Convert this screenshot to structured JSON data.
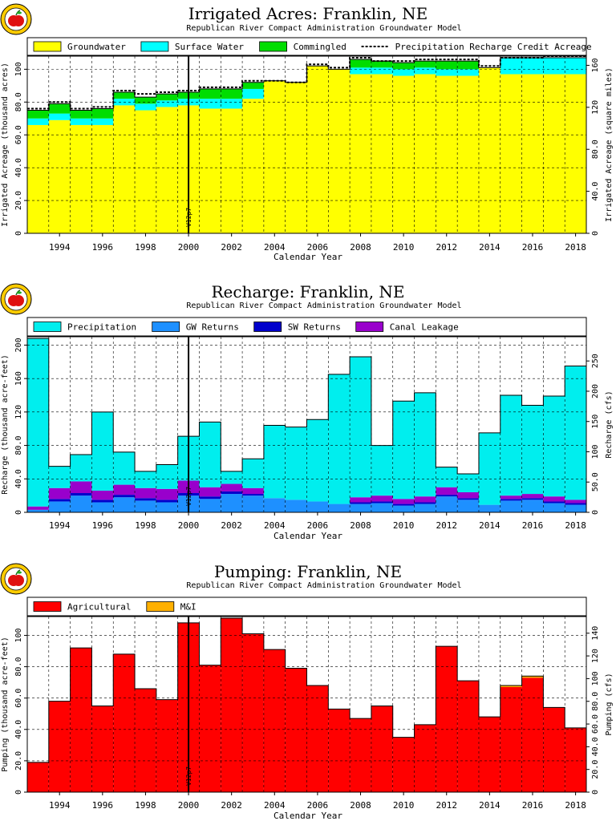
{
  "colors": {
    "groundwater": "#ffff00",
    "surface_water": "#00ffff",
    "commingled": "#00dd00",
    "precip_credit_line": "#000000",
    "precipitation": "#00eeee",
    "gw_returns": "#1e90ff",
    "sw_returns": "#0000cc",
    "canal_leakage": "#9900cc",
    "agricultural": "#ff0000",
    "mi": "#ffb000",
    "event_line": "#000000",
    "grid": "#000000",
    "logo_red": "#e01010"
  },
  "event_marker": {
    "label": "V12p7",
    "year": 2000.5
  },
  "chart_data": [
    {
      "id": "irrigated",
      "type": "area",
      "step": true,
      "title": "Irrigated Acres: Franklin, NE",
      "subtitle": "Republican River Compact Administration Groundwater Model",
      "xlabel": "Calendar Year",
      "ylabel": "Irrigated Acreage (thousand acres)",
      "ylabel_right": "Irrigated Acreage (square miles)",
      "xlim": [
        1993,
        2019
      ],
      "ylim": [
        0,
        108
      ],
      "x_ticks": [
        1994,
        1996,
        1998,
        2000,
        2002,
        2004,
        2006,
        2008,
        2010,
        2012,
        2014,
        2016,
        2018
      ],
      "y_ticks": [
        0,
        20,
        40,
        60,
        80,
        100
      ],
      "y_tick_labels": [
        "0",
        "20.0",
        "40.0",
        "60.0",
        "80.0",
        "100"
      ],
      "y_right_ticks": [
        0,
        40,
        80,
        120,
        160
      ],
      "y_right_tick_labels": [
        "0",
        "40.0",
        "80.0",
        "120",
        "160"
      ],
      "y_right_scale": 1.5625,
      "grid": true,
      "legend_position": "top",
      "years": [
        1993,
        1994,
        1995,
        1996,
        1997,
        1998,
        1999,
        2000,
        2001,
        2002,
        2003,
        2004,
        2005,
        2006,
        2007,
        2008,
        2009,
        2010,
        2011,
        2012,
        2013,
        2014,
        2015,
        2016,
        2017,
        2018
      ],
      "series": [
        {
          "name": "Groundwater",
          "color_key": "groundwater",
          "values": [
            66,
            69,
            66,
            66,
            78,
            75,
            77,
            78,
            76,
            76,
            82,
            93,
            92,
            102,
            100,
            97,
            97,
            96,
            97,
            96,
            96,
            101,
            97,
            97,
            97,
            97
          ]
        },
        {
          "name": "Surface Water",
          "color_key": "surface_water",
          "values": [
            4,
            4,
            4,
            4,
            4,
            4,
            4,
            4,
            6,
            6,
            6,
            0,
            0,
            0,
            0,
            4,
            4,
            4,
            4,
            4,
            4,
            0,
            10,
            10,
            10,
            10
          ]
        },
        {
          "name": "Commingled",
          "color_key": "commingled",
          "values": [
            5,
            6,
            5,
            6,
            4,
            4,
            4,
            4,
            6,
            6,
            4,
            0,
            0,
            0,
            0,
            5,
            4,
            4,
            4,
            5,
            5,
            0,
            0,
            0,
            0,
            0
          ]
        }
      ],
      "line_series": {
        "name": "Precipitation Recharge Credit Acreage",
        "color_key": "precip_credit_line",
        "dashed": true,
        "values": [
          76,
          80,
          76,
          77,
          87,
          85,
          86,
          87,
          89,
          89,
          93,
          93,
          92,
          103,
          101,
          107,
          105,
          105,
          106,
          106,
          106,
          102,
          107,
          107,
          108,
          108
        ]
      }
    },
    {
      "id": "recharge",
      "type": "area",
      "step": true,
      "title": "Recharge: Franklin, NE",
      "subtitle": "Republican River Compact Administration Groundwater Model",
      "xlabel": "Calendar Year",
      "ylabel": "Recharge (thousand acre-feet)",
      "ylabel_right": "Recharge (cfs)",
      "xlim": [
        1993,
        2019
      ],
      "ylim": [
        0,
        210
      ],
      "x_ticks": [
        1994,
        1996,
        1998,
        2000,
        2002,
        2004,
        2006,
        2008,
        2010,
        2012,
        2014,
        2016,
        2018
      ],
      "y_ticks": [
        0,
        40,
        80,
        120,
        160,
        200
      ],
      "y_tick_labels": [
        "0",
        "40.0",
        "80.0",
        "120",
        "160",
        "200"
      ],
      "y_right_ticks": [
        0,
        50,
        100,
        150,
        200,
        250
      ],
      "y_right_tick_labels": [
        "0",
        "50.0",
        "100",
        "150",
        "200",
        "250"
      ],
      "y_right_scale": 1.381,
      "grid": true,
      "legend_position": "top",
      "years": [
        1993,
        1994,
        1995,
        1996,
        1997,
        1998,
        1999,
        2000,
        2001,
        2002,
        2003,
        2004,
        2005,
        2006,
        2007,
        2008,
        2009,
        2010,
        2011,
        2012,
        2013,
        2014,
        2015,
        2016,
        2017,
        2018
      ],
      "series": [
        {
          "name": "GW Returns",
          "color_key": "gw_returns",
          "values": [
            3,
            13,
            20,
            12,
            18,
            14,
            12,
            20,
            16,
            22,
            20,
            17,
            15,
            13,
            10,
            10,
            11,
            8,
            10,
            19,
            15,
            9,
            14,
            15,
            11,
            9
          ]
        },
        {
          "name": "SW Returns",
          "color_key": "sw_returns",
          "values": [
            0,
            3,
            3,
            3,
            3,
            3,
            3,
            3,
            3,
            3,
            2,
            0,
            0,
            0,
            0,
            2,
            2,
            2,
            2,
            2,
            2,
            0,
            2,
            2,
            2,
            2
          ]
        },
        {
          "name": "Canal Leakage",
          "color_key": "canal_leakage",
          "values": [
            4,
            13,
            14,
            11,
            12,
            12,
            13,
            15,
            11,
            9,
            7,
            0,
            0,
            0,
            0,
            6,
            7,
            6,
            7,
            9,
            7,
            0,
            4,
            5,
            6,
            4
          ]
        },
        {
          "name": "Precipitation",
          "color_key": "precipitation",
          "values": [
            201,
            26,
            32,
            94,
            39,
            20,
            29,
            53,
            78,
            15,
            35,
            87,
            87,
            98,
            155,
            168,
            60,
            117,
            124,
            24,
            22,
            86,
            120,
            106,
            120,
            160
          ]
        }
      ]
    },
    {
      "id": "pumping",
      "type": "area",
      "step": true,
      "title": "Pumping: Franklin, NE",
      "subtitle": "Republican River Compact Administration Groundwater Model",
      "xlabel": "Calendar Year",
      "ylabel": "Pumping (thousand acre-feet)",
      "ylabel_right": "Pumping (cfs)",
      "xlim": [
        1993,
        2019
      ],
      "ylim": [
        0,
        112
      ],
      "x_ticks": [
        1994,
        1996,
        1998,
        2000,
        2002,
        2004,
        2006,
        2008,
        2010,
        2012,
        2014,
        2016,
        2018
      ],
      "y_ticks": [
        0,
        20,
        40,
        60,
        80,
        100
      ],
      "y_tick_labels": [
        "0",
        "20.0",
        "40.0",
        "60.0",
        "80.0",
        "100"
      ],
      "y_right_ticks": [
        0,
        20,
        40,
        60,
        80,
        100,
        120,
        140
      ],
      "y_right_tick_labels": [
        "0",
        "20.0",
        "40.0",
        "60.0",
        "80.0",
        "100",
        "120",
        "140"
      ],
      "y_right_scale": 1.381,
      "grid": true,
      "legend_position": "top",
      "years": [
        1993,
        1994,
        1995,
        1996,
        1997,
        1998,
        1999,
        2000,
        2001,
        2002,
        2003,
        2004,
        2005,
        2006,
        2007,
        2008,
        2009,
        2010,
        2011,
        2012,
        2013,
        2014,
        2015,
        2016,
        2017,
        2018
      ],
      "series": [
        {
          "name": "Agricultural",
          "color_key": "agricultural",
          "values": [
            19,
            58,
            92,
            55,
            88,
            66,
            59,
            108,
            81,
            111,
            101,
            91,
            79,
            68,
            53,
            47,
            55,
            35,
            43,
            93,
            71,
            48,
            67,
            73,
            54,
            41
          ]
        },
        {
          "name": "M&I",
          "color_key": "mi",
          "values": [
            0,
            0,
            0,
            0,
            0,
            0,
            0,
            0,
            0,
            0,
            0,
            0,
            0,
            0,
            0,
            0,
            0,
            0,
            0,
            0,
            0,
            0,
            1,
            1,
            0,
            0
          ]
        }
      ]
    }
  ]
}
